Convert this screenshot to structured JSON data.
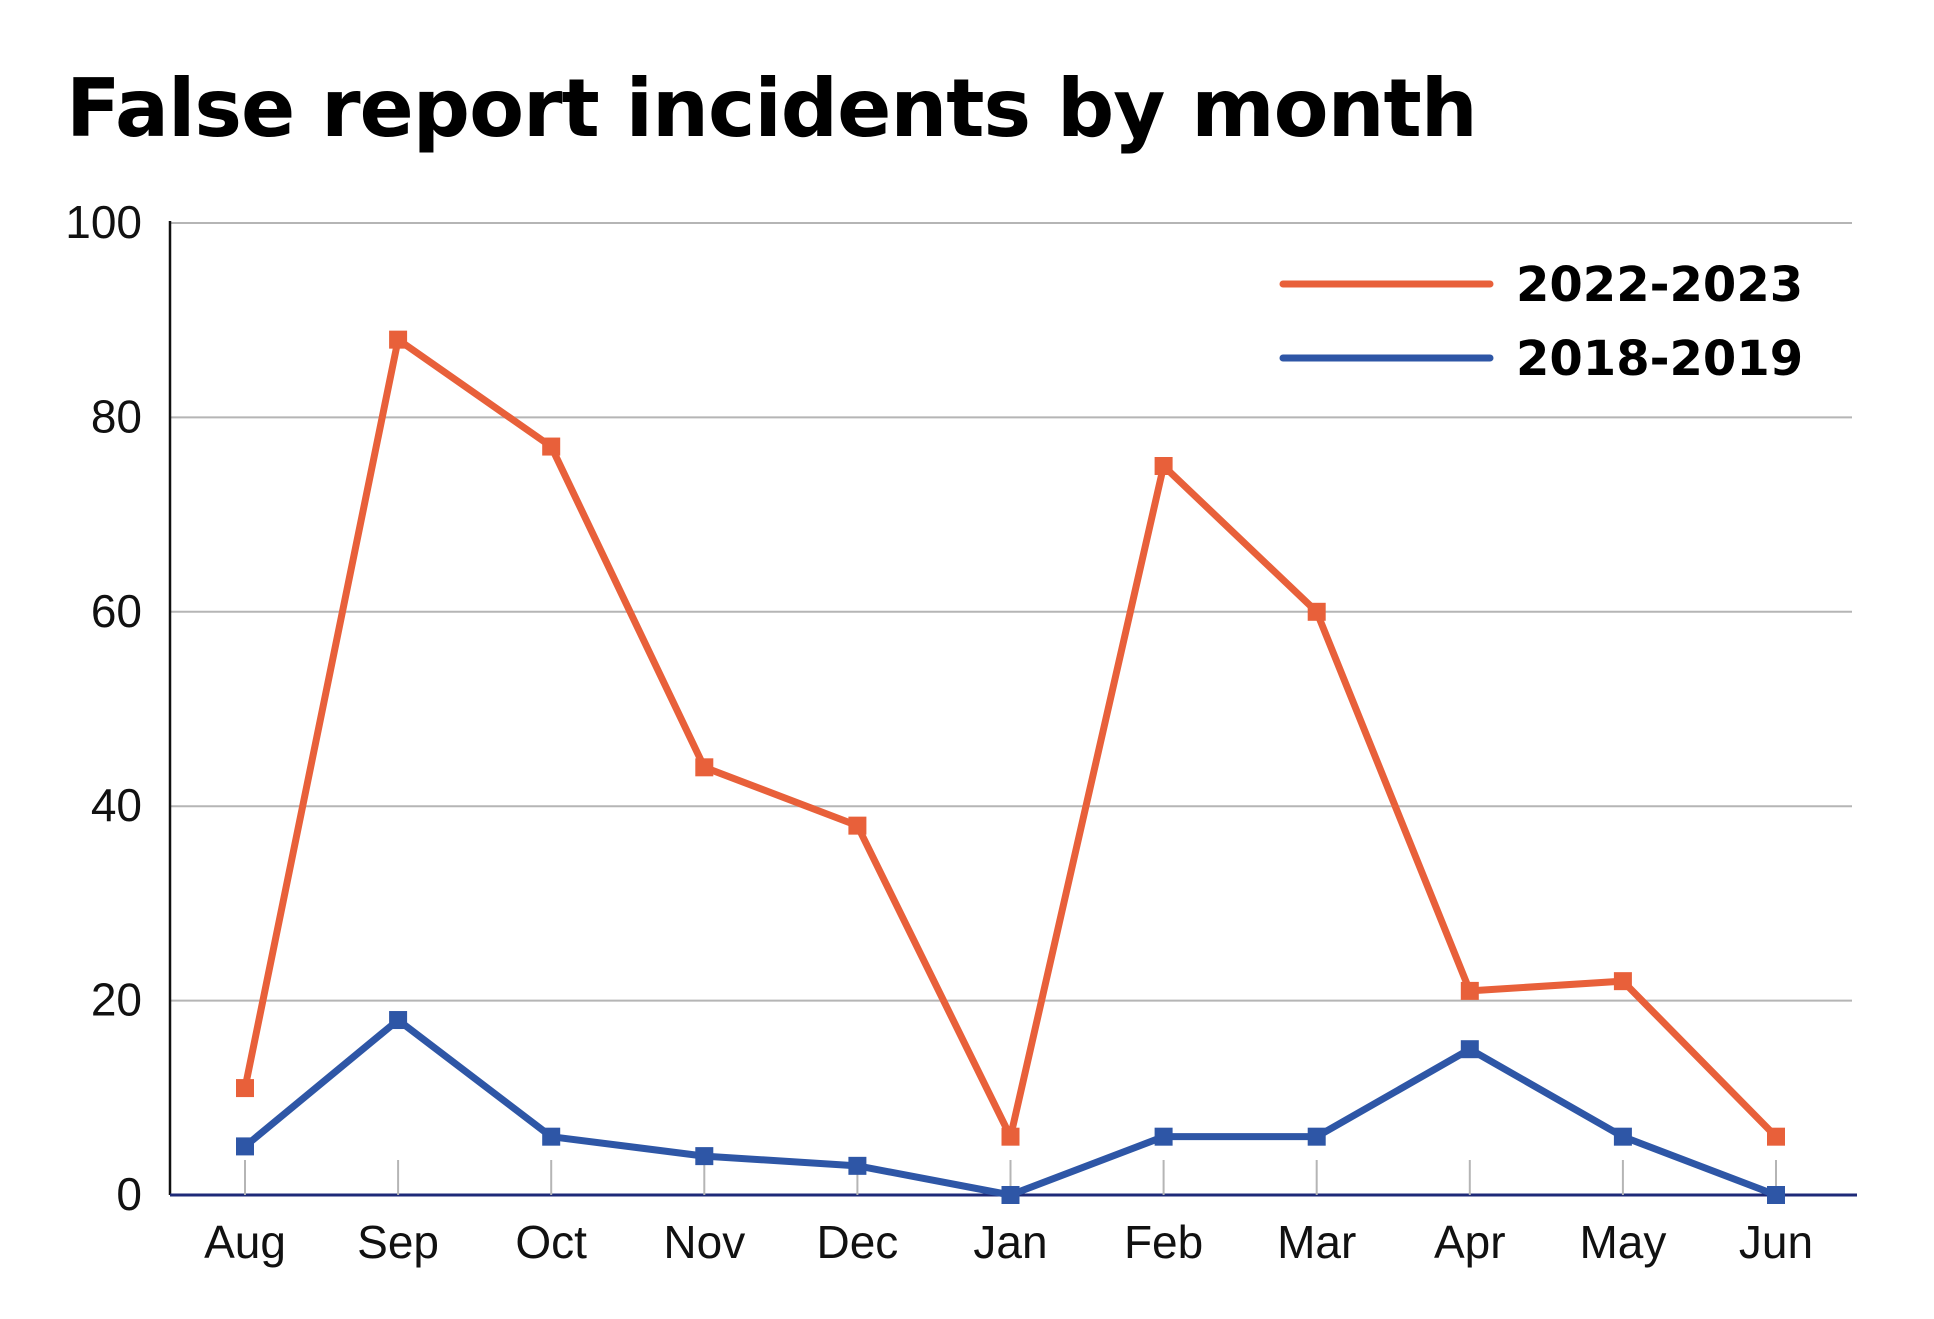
{
  "chart_data": {
    "type": "line",
    "title": "False report incidents by month",
    "xlabel": "",
    "ylabel": "",
    "categories": [
      "Aug",
      "Sep",
      "Oct",
      "Nov",
      "Dec",
      "Jan",
      "Feb",
      "Mar",
      "Apr",
      "May",
      "Jun"
    ],
    "ylim": [
      0,
      100
    ],
    "yticks": [
      "0",
      "20",
      "40",
      "60",
      "80",
      "100"
    ],
    "grid": true,
    "legend_position": "top-right",
    "series": [
      {
        "name": "2022-2023",
        "color": "#e8603a",
        "values": [
          11,
          88,
          77,
          44,
          38,
          6,
          75,
          60,
          21,
          22,
          6
        ]
      },
      {
        "name": "2018-2019",
        "color": "#2e56a6",
        "values": [
          5,
          18,
          6,
          4,
          3,
          0,
          6,
          6,
          15,
          6,
          0
        ]
      }
    ]
  }
}
